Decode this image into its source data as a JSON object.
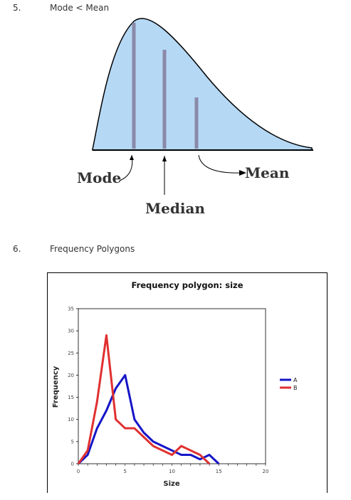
{
  "section5": {
    "number": "5.",
    "heading": "Mode < Mean",
    "diagram": {
      "labels": {
        "mode": "Mode",
        "median": "Median",
        "mean": "Mean"
      },
      "fill_color": "#b5d8f5",
      "line_color": "#8a8aa8"
    }
  },
  "section6": {
    "number": "6.",
    "heading": "Frequency Polygons"
  },
  "chart_data": {
    "type": "line",
    "title": "Frequency polygon: size",
    "xlabel": "Size",
    "ylabel": "Frequency",
    "xlim": [
      0,
      20
    ],
    "ylim": [
      0,
      35
    ],
    "xticks": [
      0,
      5,
      10,
      15,
      20
    ],
    "yticks": [
      0,
      5,
      10,
      15,
      20,
      25,
      30,
      35
    ],
    "legend_position": "right",
    "series": [
      {
        "name": "A",
        "color": "#1515c8",
        "x": [
          0,
          1,
          2,
          3,
          4,
          5,
          6,
          7,
          8,
          9,
          10,
          11,
          12,
          13,
          14,
          15
        ],
        "y": [
          0,
          2,
          8,
          12,
          17,
          20,
          10,
          7,
          5,
          4,
          3,
          2,
          2,
          1,
          2,
          0
        ]
      },
      {
        "name": "B",
        "color": "#e03030",
        "x": [
          0,
          1,
          2,
          3,
          4,
          5,
          6,
          7,
          8,
          9,
          10,
          11,
          12,
          13,
          14
        ],
        "y": [
          0,
          3,
          14,
          29,
          10,
          8,
          8,
          6,
          4,
          3,
          2,
          4,
          3,
          2,
          0
        ]
      }
    ]
  }
}
